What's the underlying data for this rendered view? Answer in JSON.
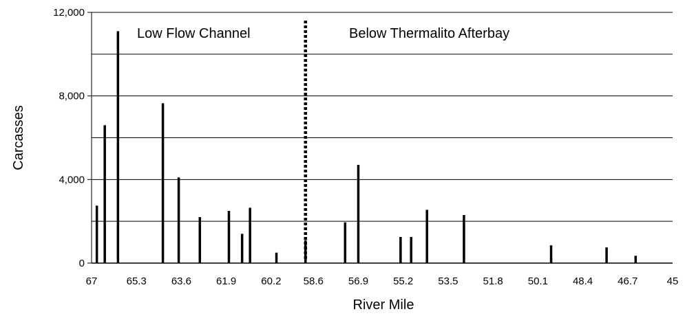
{
  "chart_data": {
    "type": "bar",
    "title": "",
    "xlabel": "River Mile",
    "ylabel": "Carcasses",
    "x_reversed": true,
    "xlim": [
      67,
      45
    ],
    "ylim": [
      0,
      12000
    ],
    "y_ticks": [
      0,
      4000,
      8000,
      12000
    ],
    "y_tick_labels": [
      "0",
      "4,000",
      "8,000",
      "12,000"
    ],
    "y_gridlines": [
      0,
      2000,
      4000,
      6000,
      8000,
      10000,
      12000
    ],
    "x_ticks": [
      67,
      65.3,
      63.6,
      61.9,
      60.2,
      58.6,
      56.9,
      55.2,
      53.5,
      51.8,
      50.1,
      48.4,
      46.7,
      45
    ],
    "x_tick_labels": [
      "67",
      "65.3",
      "63.6",
      "61.9",
      "60.2",
      "58.6",
      "56.9",
      "55.2",
      "53.5",
      "51.8",
      "50.1",
      "48.4",
      "46.7",
      "45"
    ],
    "grid": true,
    "legend": "none",
    "bar_color": "#000000",
    "points": [
      {
        "x": 66.8,
        "y": 2750
      },
      {
        "x": 66.5,
        "y": 6600
      },
      {
        "x": 66.0,
        "y": 11100
      },
      {
        "x": 64.3,
        "y": 7650
      },
      {
        "x": 63.7,
        "y": 4100
      },
      {
        "x": 62.9,
        "y": 2200
      },
      {
        "x": 61.8,
        "y": 2500
      },
      {
        "x": 61.3,
        "y": 1400
      },
      {
        "x": 61.0,
        "y": 2650
      },
      {
        "x": 60.0,
        "y": 500
      },
      {
        "x": 58.9,
        "y": 1100
      },
      {
        "x": 57.4,
        "y": 1950
      },
      {
        "x": 56.9,
        "y": 4700
      },
      {
        "x": 55.3,
        "y": 1250
      },
      {
        "x": 54.9,
        "y": 1250
      },
      {
        "x": 54.3,
        "y": 2550
      },
      {
        "x": 52.9,
        "y": 2300
      },
      {
        "x": 49.6,
        "y": 850
      },
      {
        "x": 47.5,
        "y": 750
      },
      {
        "x": 46.4,
        "y": 350
      }
    ],
    "divider": {
      "x": 58.9,
      "style": "dotted"
    },
    "annotations": [
      {
        "text": "Low Flow Channel",
        "region": "left of divider"
      },
      {
        "text": "Below Thermalito Afterbay",
        "region": "right of divider"
      }
    ]
  }
}
